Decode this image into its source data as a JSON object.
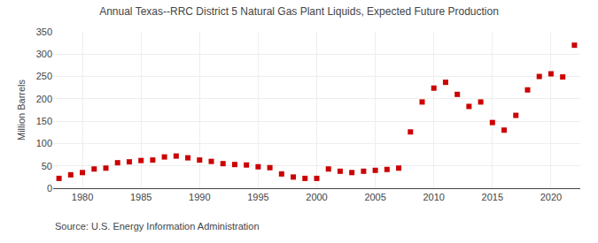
{
  "chart_data": {
    "type": "scatter",
    "title": "Annual Texas--RRC District 5 Natural Gas Plant Liquids, Expected Future Production",
    "ylabel": "Million Barrels",
    "annotations": [
      "Source: U.S. Energy Information Administration"
    ],
    "x": [
      1978,
      1979,
      1980,
      1981,
      1982,
      1983,
      1984,
      1985,
      1986,
      1987,
      1988,
      1989,
      1990,
      1991,
      1992,
      1993,
      1994,
      1995,
      1996,
      1997,
      1998,
      1999,
      2000,
      2001,
      2002,
      2003,
      2004,
      2005,
      2006,
      2007,
      2008,
      2009,
      2010,
      2011,
      2012,
      2013,
      2014,
      2015,
      2016,
      2017,
      2018,
      2019,
      2020,
      2021,
      2022
    ],
    "values": [
      22,
      30,
      35,
      43,
      45,
      57,
      59,
      62,
      63,
      70,
      72,
      68,
      63,
      60,
      55,
      53,
      52,
      48,
      46,
      32,
      25,
      22,
      22,
      43,
      38,
      35,
      38,
      40,
      42,
      45,
      126,
      193,
      224,
      237,
      210,
      183,
      193,
      147,
      130,
      163,
      220,
      250,
      256,
      249,
      320
    ],
    "color": "#cc0000",
    "marker": "square",
    "grid": true,
    "xlim": [
      1977.5,
      2022.5
    ],
    "xticks": [
      1980,
      1985,
      1990,
      1995,
      2000,
      2005,
      2010,
      2015,
      2020
    ],
    "ylim": [
      0,
      350
    ],
    "yticks": [
      0,
      50,
      100,
      150,
      200,
      250,
      300,
      350
    ]
  }
}
